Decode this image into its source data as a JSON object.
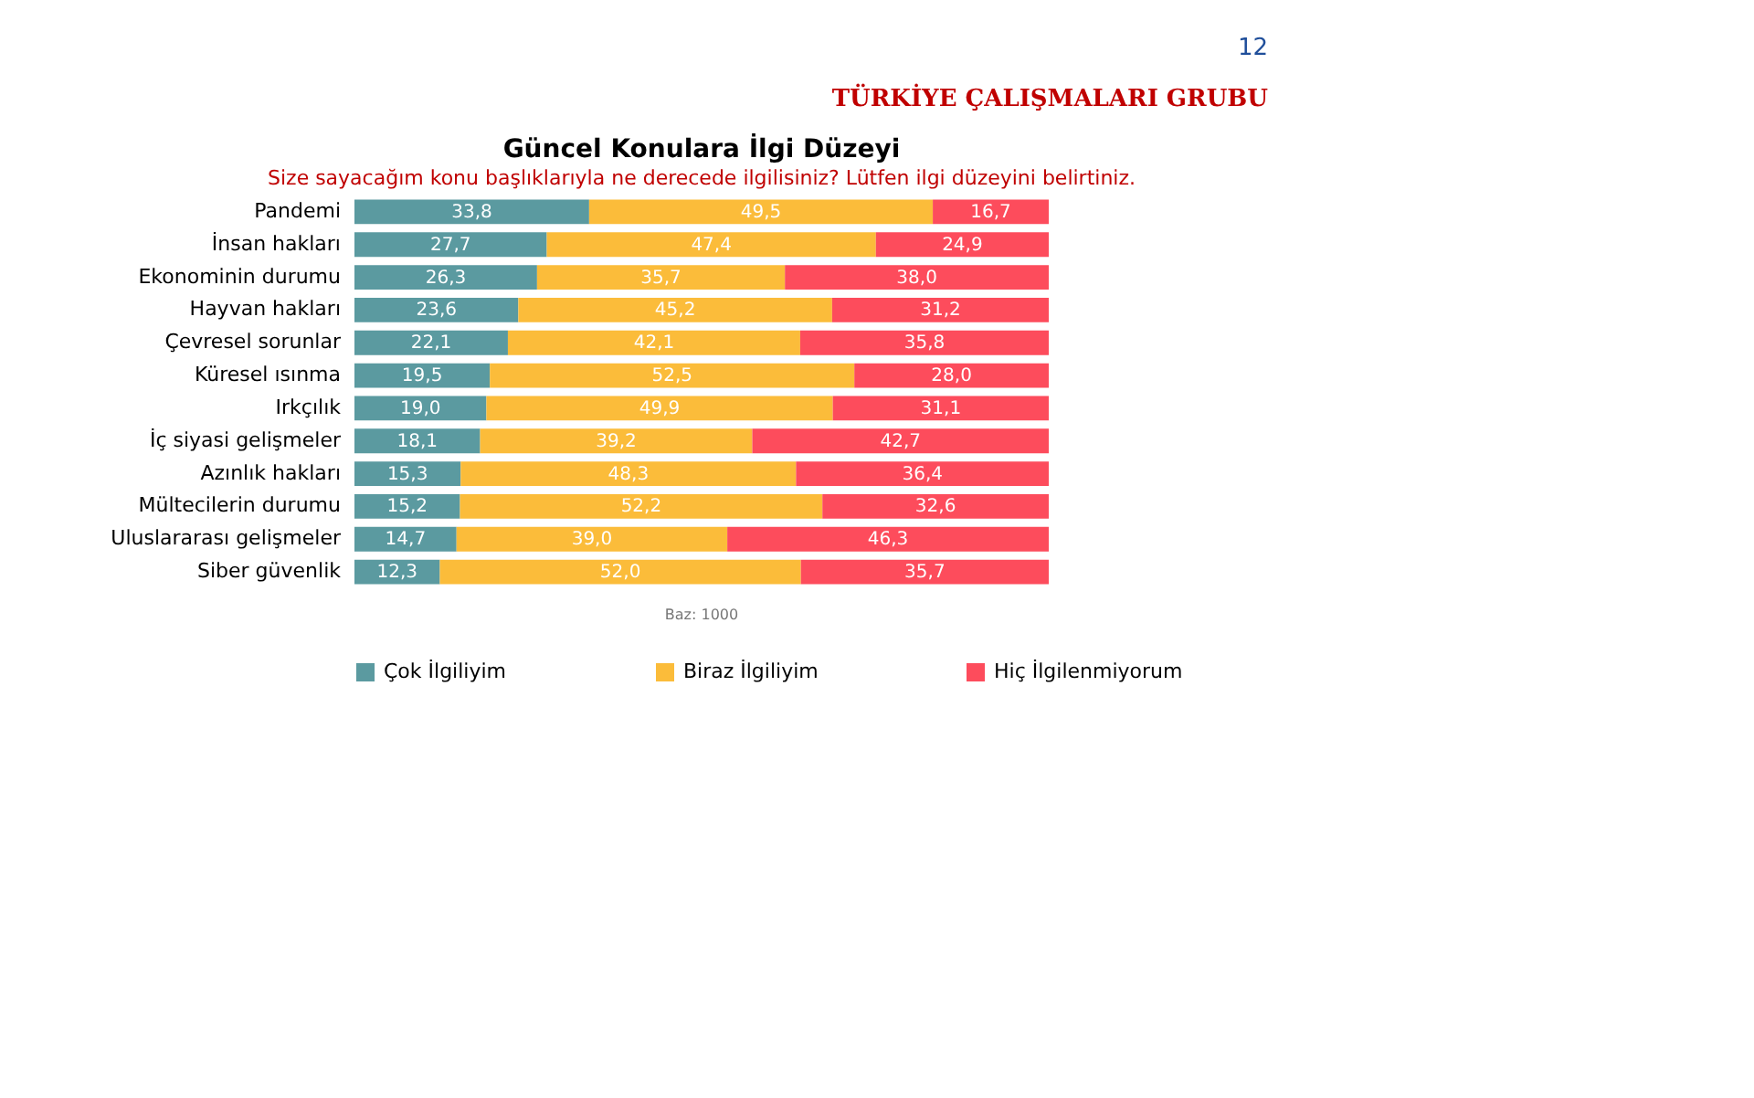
{
  "chart_data": {
    "type": "bar",
    "orientation": "horizontal",
    "stacked": true,
    "title": "Güncel Konulara İlgi Düzeyi",
    "subtitle": "Size sayacağım konu başlıklarıyla ne derecede ilgilisiniz? Lütfen ilgi düzeyini belirtiniz.",
    "categories": [
      "Pandemi",
      "İnsan hakları",
      "Ekonominin durumu",
      "Hayvan hakları",
      "Çevresel sorunlar",
      "Küresel ısınma",
      "Irkçılık",
      "İç siyasi gelişmeler",
      "Azınlık hakları",
      "Mültecilerin durumu",
      "Uluslararası gelişmeler",
      "Siber güvenlik"
    ],
    "series": [
      {
        "name": "Çok İlgiliyim",
        "color": "#5b9aa0",
        "values": [
          33.8,
          27.7,
          26.3,
          23.6,
          22.1,
          19.5,
          19.0,
          18.1,
          15.3,
          15.2,
          14.7,
          12.3
        ],
        "value_labels": [
          "33,8",
          "27,7",
          "26,3",
          "23,6",
          "22,1",
          "19,5",
          "19,0",
          "18,1",
          "15,3",
          "15,2",
          "14,7",
          "12,3"
        ]
      },
      {
        "name": "Biraz İlgiliyim",
        "color": "#fbbc3a",
        "values": [
          49.5,
          47.4,
          35.7,
          45.2,
          42.1,
          52.5,
          49.9,
          39.2,
          48.3,
          52.2,
          39.0,
          52.0
        ],
        "value_labels": [
          "49,5",
          "47,4",
          "35,7",
          "45,2",
          "42,1",
          "52,5",
          "49,9",
          "39,2",
          "48,3",
          "52,2",
          "39,0",
          "52,0"
        ]
      },
      {
        "name": "Hiç İlgilenmiyorum",
        "color": "#fd4c5c",
        "values": [
          16.7,
          24.9,
          38.0,
          31.2,
          35.8,
          28.0,
          31.1,
          42.7,
          36.4,
          32.6,
          46.3,
          35.7
        ],
        "value_labels": [
          "16,7",
          "24,9",
          "38,0",
          "31,2",
          "35,8",
          "28,0",
          "31,1",
          "42,7",
          "36,4",
          "32,6",
          "46,3",
          "35,7"
        ]
      }
    ],
    "legend": "bottom",
    "annotations": [
      "12",
      "TÜRKİYE ÇALIŞMALARI GRUBU",
      "Baz: 1000"
    ]
  }
}
